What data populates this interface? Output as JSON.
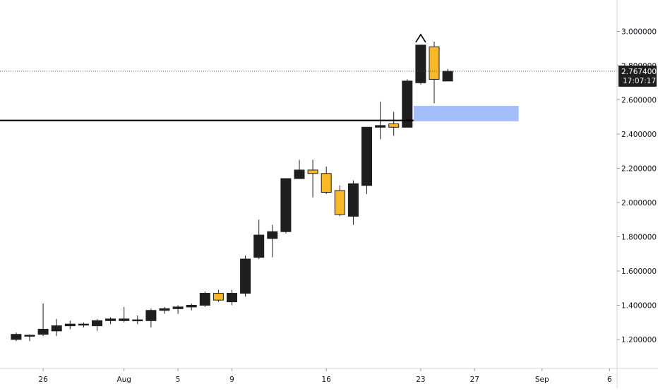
{
  "chart_data": {
    "type": "candlestick",
    "y_ticks": [
      "3.000000",
      "2.800000",
      "2.600000",
      "2.400000",
      "2.200000",
      "2.000000",
      "1.800000",
      "1.600000",
      "1.400000",
      "1.200000"
    ],
    "y_tick_values": [
      3.0,
      2.8,
      2.6,
      2.4,
      2.2,
      2.0,
      1.8,
      1.6,
      1.4,
      1.2
    ],
    "x_ticks": [
      {
        "label": "26",
        "day": 1
      },
      {
        "label": "Aug",
        "day": 7
      },
      {
        "label": "5",
        "day": 11
      },
      {
        "label": "9",
        "day": 15
      },
      {
        "label": "16",
        "day": 22
      },
      {
        "label": "23",
        "day": 29
      },
      {
        "label": "27",
        "day": 33
      },
      {
        "label": "Sep",
        "day": 38
      },
      {
        "label": "6",
        "day": 43
      }
    ],
    "current_price": {
      "label": "2.767400",
      "countdown": "17:07:17",
      "value": 2.7674
    },
    "resistance_level": 2.48,
    "demand_zone": {
      "start_day": 29,
      "end_day": 36,
      "low": 2.475,
      "high": 2.565
    },
    "arrow_marker_day": 29,
    "colors": {
      "up": "#1e1e1e",
      "down": "#f7b928",
      "zone": "#a4bdfb",
      "line": "#000000",
      "axis_text": "#131722"
    },
    "candles": [
      {
        "day": -1,
        "o": 1.2,
        "h": 1.24,
        "l": 1.19,
        "c": 1.23
      },
      {
        "day": 0,
        "o": 1.22,
        "h": 1.23,
        "l": 1.19,
        "c": 1.225
      },
      {
        "day": 1,
        "o": 1.23,
        "h": 1.41,
        "l": 1.22,
        "c": 1.26
      },
      {
        "day": 2,
        "o": 1.25,
        "h": 1.32,
        "l": 1.22,
        "c": 1.28
      },
      {
        "day": 3,
        "o": 1.28,
        "h": 1.31,
        "l": 1.26,
        "c": 1.29
      },
      {
        "day": 4,
        "o": 1.285,
        "h": 1.3,
        "l": 1.27,
        "c": 1.29
      },
      {
        "day": 5,
        "o": 1.28,
        "h": 1.32,
        "l": 1.25,
        "c": 1.31
      },
      {
        "day": 6,
        "o": 1.31,
        "h": 1.33,
        "l": 1.29,
        "c": 1.32
      },
      {
        "day": 7,
        "o": 1.31,
        "h": 1.39,
        "l": 1.3,
        "c": 1.32
      },
      {
        "day": 8,
        "o": 1.31,
        "h": 1.34,
        "l": 1.29,
        "c": 1.315
      },
      {
        "day": 9,
        "o": 1.31,
        "h": 1.38,
        "l": 1.27,
        "c": 1.37
      },
      {
        "day": 10,
        "o": 1.37,
        "h": 1.39,
        "l": 1.35,
        "c": 1.38
      },
      {
        "day": 11,
        "o": 1.38,
        "h": 1.4,
        "l": 1.35,
        "c": 1.39
      },
      {
        "day": 12,
        "o": 1.39,
        "h": 1.41,
        "l": 1.37,
        "c": 1.4
      },
      {
        "day": 13,
        "o": 1.4,
        "h": 1.48,
        "l": 1.39,
        "c": 1.47
      },
      {
        "day": 14,
        "o": 1.47,
        "h": 1.49,
        "l": 1.42,
        "c": 1.43
      },
      {
        "day": 15,
        "o": 1.42,
        "h": 1.49,
        "l": 1.4,
        "c": 1.47
      },
      {
        "day": 16,
        "o": 1.47,
        "h": 1.69,
        "l": 1.45,
        "c": 1.67
      },
      {
        "day": 17,
        "o": 1.68,
        "h": 1.9,
        "l": 1.67,
        "c": 1.81
      },
      {
        "day": 18,
        "o": 1.79,
        "h": 1.87,
        "l": 1.68,
        "c": 1.83
      },
      {
        "day": 19,
        "o": 1.83,
        "h": 2.14,
        "l": 1.82,
        "c": 2.14
      },
      {
        "day": 20,
        "o": 2.14,
        "h": 2.25,
        "l": 2.14,
        "c": 2.19
      },
      {
        "day": 21,
        "o": 2.19,
        "h": 2.25,
        "l": 2.03,
        "c": 2.17
      },
      {
        "day": 22,
        "o": 2.17,
        "h": 2.21,
        "l": 2.05,
        "c": 2.06
      },
      {
        "day": 23,
        "o": 2.07,
        "h": 2.1,
        "l": 1.92,
        "c": 1.93
      },
      {
        "day": 24,
        "o": 1.92,
        "h": 2.13,
        "l": 1.87,
        "c": 2.11
      },
      {
        "day": 25,
        "o": 2.1,
        "h": 2.44,
        "l": 2.05,
        "c": 2.44
      },
      {
        "day": 26,
        "o": 2.44,
        "h": 2.59,
        "l": 2.37,
        "c": 2.45
      },
      {
        "day": 27,
        "o": 2.46,
        "h": 2.53,
        "l": 2.39,
        "c": 2.44
      },
      {
        "day": 28,
        "o": 2.44,
        "h": 2.72,
        "l": 2.44,
        "c": 2.71
      },
      {
        "day": 29,
        "o": 2.7,
        "h": 2.92,
        "l": 2.69,
        "c": 2.92
      },
      {
        "day": 30,
        "o": 2.91,
        "h": 2.94,
        "l": 2.58,
        "c": 2.72
      },
      {
        "day": 31,
        "o": 2.71,
        "h": 2.78,
        "l": 2.71,
        "c": 2.767
      }
    ]
  }
}
